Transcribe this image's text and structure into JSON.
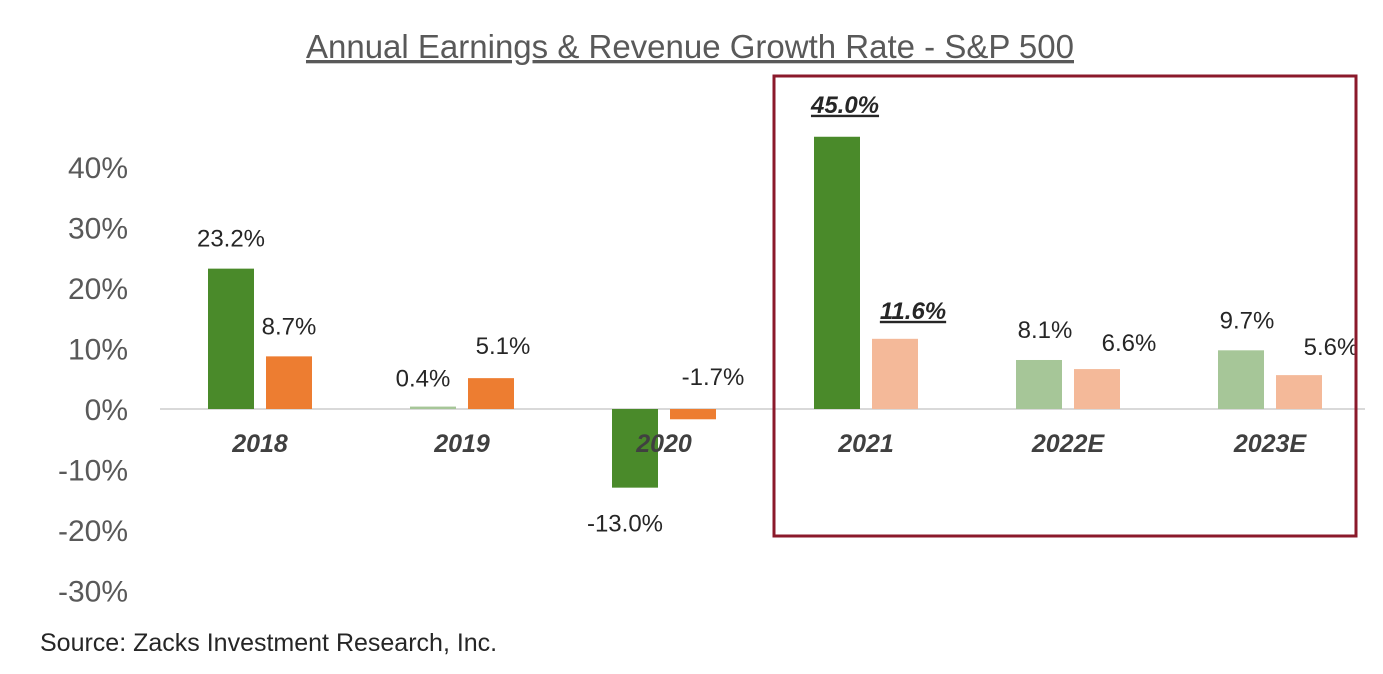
{
  "chart_data": {
    "type": "bar",
    "title": "Annual Earnings & Revenue Growth Rate - S&P 500",
    "categories": [
      "2018",
      "2019",
      "2020",
      "2021",
      "2022E",
      "2023E"
    ],
    "series": [
      {
        "values": [
          23.2,
          0.4,
          -13.0,
          45.0,
          8.1,
          9.7
        ],
        "labels": [
          "23.2%",
          "0.4%",
          "-13.0%",
          "45.0%",
          "8.1%",
          "9.7%"
        ],
        "colors": [
          "#4a8a2a",
          "#a6c698",
          "#4a8a2a",
          "#4a8a2a",
          "#a6c698",
          "#a6c698"
        ]
      },
      {
        "values": [
          8.7,
          5.1,
          -1.7,
          11.6,
          6.6,
          5.6
        ],
        "labels": [
          "8.7%",
          "5.1%",
          "-1.7%",
          "11.6%",
          "6.6%",
          "5.6%"
        ],
        "colors": [
          "#ed7d31",
          "#ed7d31",
          "#ed7d31",
          "#f4b999",
          "#f4b999",
          "#f4b999"
        ]
      }
    ],
    "emphasized_labels": [
      "45.0%",
      "11.6%"
    ],
    "highlighted_categories": [
      "2021",
      "2022E",
      "2023E"
    ],
    "highlight_border_color": "#8b1a2b",
    "ylim": [
      -30,
      45
    ],
    "yticks": [
      40,
      30,
      20,
      10,
      0,
      -10,
      -20,
      -30
    ],
    "ytick_labels": [
      "40%",
      "30%",
      "20%",
      "10%",
      "0%",
      "-10%",
      "-20%",
      "-30%"
    ],
    "xlabel": "",
    "ylabel": "",
    "grid": false,
    "legend": "none"
  },
  "source": "Source: Zacks Investment Research, Inc."
}
